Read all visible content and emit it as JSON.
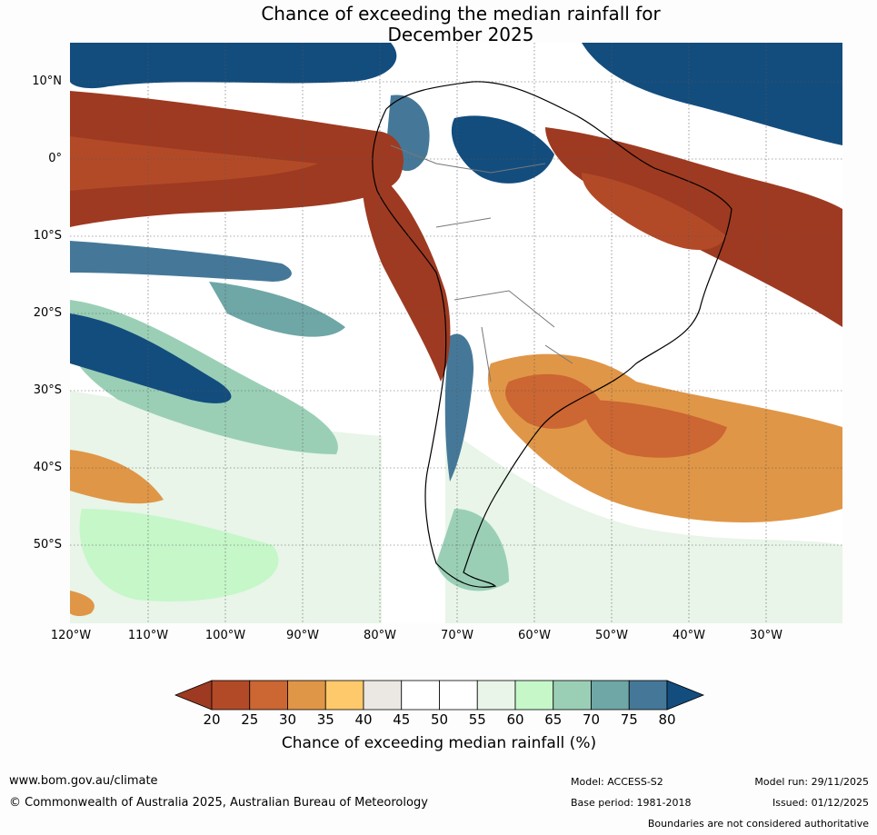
{
  "title_line1": "Chance of exceeding the median rainfall for",
  "title_line2": "December 2025",
  "map": {
    "lat_labels": [
      "10°N",
      "0°",
      "10°S",
      "20°S",
      "30°S",
      "40°S",
      "50°S"
    ],
    "lon_labels": [
      "120°W",
      "110°W",
      "100°W",
      "90°W",
      "80°W",
      "70°W",
      "60°W",
      "50°W",
      "40°W",
      "30°W"
    ]
  },
  "legend": {
    "ticks": [
      "20",
      "25",
      "30",
      "35",
      "40",
      "45",
      "50",
      "55",
      "60",
      "65",
      "70",
      "75",
      "80"
    ],
    "colors": [
      "#9e3a21",
      "#b34a27",
      "#cc6632",
      "#e09647",
      "#fdc96a",
      "#ebe8e4",
      "#ffffff",
      "#ffffff",
      "#e8f5e8",
      "#c5f7c9",
      "#9acfb6",
      "#6ea7a6",
      "#457898",
      "#134d7e"
    ],
    "label": "Chance of exceeding median rainfall (%)"
  },
  "footer": {
    "website": "www.bom.gov.au/climate",
    "copyright": "© Commonwealth of Australia 2025, Australian Bureau of Meteorology",
    "model": "Model: ACCESS-S2",
    "base_period": "Base period: 1981-2018",
    "model_run": "Model run: 29/11/2025",
    "issued": "Issued: 01/12/2025",
    "disclaimer": "Boundaries are not considered authoritative"
  }
}
